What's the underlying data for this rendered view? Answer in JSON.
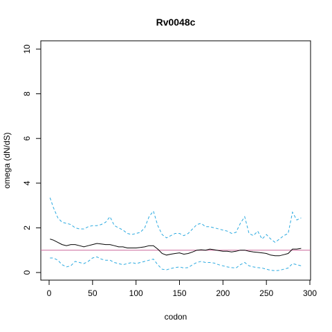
{
  "chart_data": {
    "type": "line",
    "title": "Rv0048c",
    "xlabel": "codon",
    "ylabel": "omega (dN/dS)",
    "xlim": [
      0,
      300
    ],
    "ylim": [
      0,
      10
    ],
    "x_ticks": [
      0,
      50,
      100,
      150,
      200,
      250,
      300
    ],
    "y_ticks": [
      0,
      2,
      4,
      6,
      8,
      10
    ],
    "reference_line": {
      "y": 1,
      "color": "#cc6699"
    },
    "grid": false,
    "legend": "none",
    "series": [
      {
        "role": "estimate",
        "color": "#000000",
        "style": "solid",
        "x": [
          1,
          5,
          10,
          15,
          20,
          25,
          30,
          35,
          40,
          45,
          50,
          55,
          60,
          65,
          70,
          75,
          80,
          85,
          90,
          95,
          100,
          105,
          110,
          115,
          120,
          125,
          130,
          135,
          140,
          145,
          150,
          155,
          160,
          165,
          170,
          175,
          180,
          185,
          190,
          195,
          200,
          205,
          210,
          215,
          220,
          225,
          230,
          235,
          240,
          245,
          250,
          255,
          260,
          265,
          270,
          275,
          280,
          285,
          290
        ],
        "y": [
          1.5,
          1.45,
          1.35,
          1.25,
          1.2,
          1.25,
          1.25,
          1.2,
          1.15,
          1.2,
          1.25,
          1.3,
          1.28,
          1.25,
          1.25,
          1.2,
          1.15,
          1.15,
          1.1,
          1.1,
          1.1,
          1.12,
          1.15,
          1.2,
          1.2,
          1.05,
          0.85,
          0.78,
          0.82,
          0.85,
          0.88,
          0.82,
          0.85,
          0.92,
          1.0,
          1.02,
          1.0,
          1.05,
          1.02,
          0.98,
          0.95,
          0.95,
          0.92,
          0.95,
          1.0,
          1.0,
          0.95,
          0.92,
          0.9,
          0.88,
          0.85,
          0.78,
          0.75,
          0.75,
          0.8,
          0.85,
          1.05,
          1.05,
          1.08
        ]
      },
      {
        "role": "upper bound",
        "color": "#29a9e0",
        "style": "dashed",
        "x": [
          1,
          5,
          10,
          15,
          20,
          25,
          30,
          35,
          40,
          45,
          50,
          55,
          60,
          65,
          70,
          75,
          80,
          85,
          90,
          95,
          100,
          105,
          110,
          115,
          120,
          125,
          130,
          135,
          140,
          145,
          150,
          155,
          160,
          165,
          170,
          175,
          180,
          185,
          190,
          195,
          200,
          205,
          210,
          215,
          220,
          225,
          230,
          235,
          240,
          245,
          250,
          255,
          260,
          265,
          270,
          275,
          280,
          285,
          290
        ],
        "y": [
          3.35,
          2.9,
          2.45,
          2.25,
          2.2,
          2.15,
          2.0,
          1.95,
          1.95,
          2.05,
          2.1,
          2.1,
          2.15,
          2.25,
          2.5,
          2.1,
          2.0,
          1.9,
          1.75,
          1.7,
          1.75,
          1.8,
          2.0,
          2.5,
          2.75,
          2.1,
          1.7,
          1.55,
          1.65,
          1.75,
          1.75,
          1.65,
          1.75,
          1.95,
          2.15,
          2.2,
          2.05,
          2.05,
          2.0,
          1.95,
          1.9,
          1.85,
          1.75,
          1.8,
          2.2,
          2.5,
          1.75,
          1.65,
          1.85,
          1.5,
          1.7,
          1.5,
          1.35,
          1.5,
          1.65,
          1.75,
          2.7,
          2.35,
          2.45
        ]
      },
      {
        "role": "lower bound",
        "color": "#29a9e0",
        "style": "dashed",
        "x": [
          1,
          5,
          10,
          15,
          20,
          25,
          30,
          35,
          40,
          45,
          50,
          55,
          60,
          65,
          70,
          75,
          80,
          85,
          90,
          95,
          100,
          105,
          110,
          115,
          120,
          125,
          130,
          135,
          140,
          145,
          150,
          155,
          160,
          165,
          170,
          175,
          180,
          185,
          190,
          195,
          200,
          205,
          210,
          215,
          220,
          225,
          230,
          235,
          240,
          245,
          250,
          255,
          260,
          265,
          270,
          275,
          280,
          285,
          290
        ],
        "y": [
          0.65,
          0.65,
          0.55,
          0.35,
          0.25,
          0.3,
          0.5,
          0.45,
          0.4,
          0.5,
          0.65,
          0.7,
          0.6,
          0.55,
          0.55,
          0.45,
          0.4,
          0.35,
          0.4,
          0.45,
          0.4,
          0.45,
          0.5,
          0.55,
          0.6,
          0.35,
          0.15,
          0.12,
          0.18,
          0.22,
          0.25,
          0.2,
          0.22,
          0.35,
          0.45,
          0.5,
          0.45,
          0.45,
          0.42,
          0.35,
          0.3,
          0.25,
          0.22,
          0.2,
          0.35,
          0.45,
          0.3,
          0.25,
          0.22,
          0.2,
          0.15,
          0.1,
          0.08,
          0.1,
          0.15,
          0.2,
          0.4,
          0.35,
          0.3
        ]
      }
    ]
  }
}
